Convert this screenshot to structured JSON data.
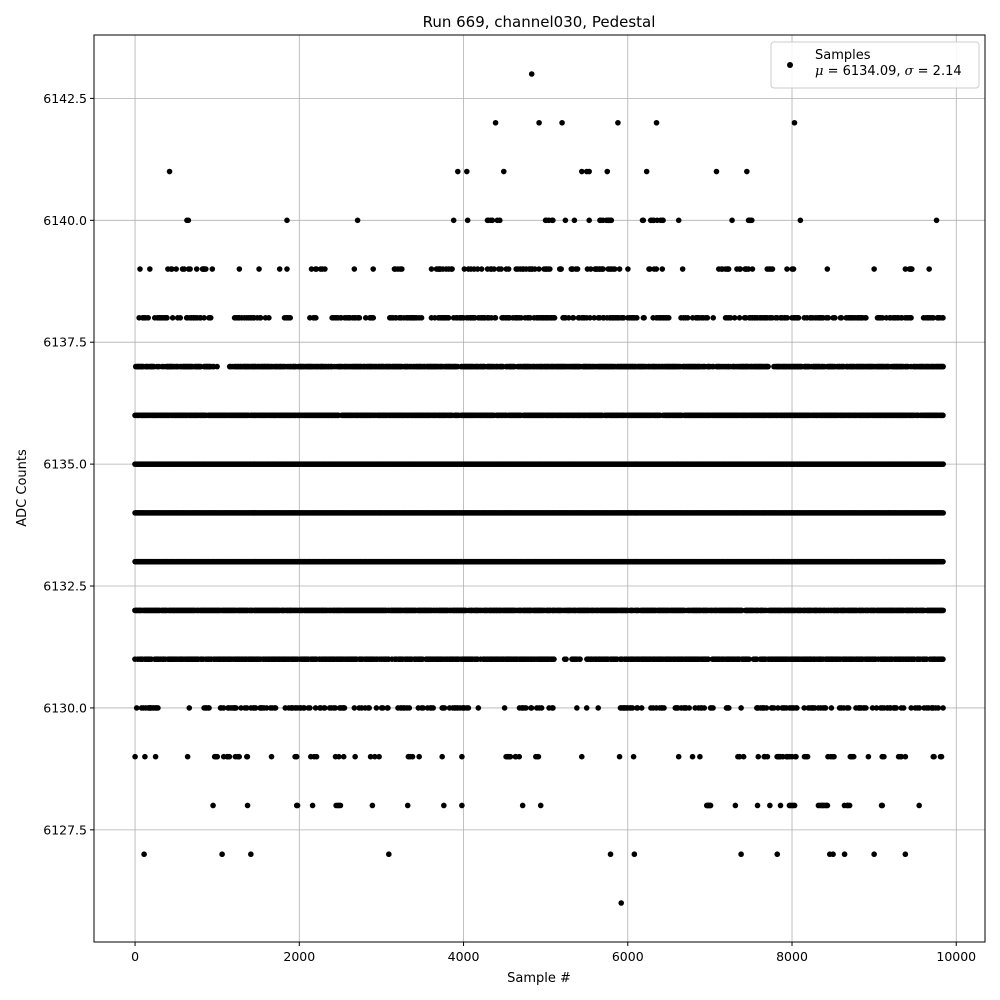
{
  "chart_data": {
    "type": "scatter",
    "title": "Run 669, channel030, Pedestal",
    "xlabel": "Sample #",
    "ylabel": "ADC Counts",
    "xlim": [
      -500,
      10350
    ],
    "ylim": [
      6125.2,
      6143.8
    ],
    "xticks": [
      0,
      2000,
      4000,
      6000,
      8000,
      10000
    ],
    "xtick_labels": [
      "0",
      "2000",
      "4000",
      "6000",
      "8000",
      "10000"
    ],
    "yticks": [
      6127.5,
      6130.0,
      6132.5,
      6135.0,
      6137.5,
      6140.0,
      6142.5
    ],
    "ytick_labels": [
      "6127.5",
      "6130.0",
      "6132.5",
      "6135.0",
      "6137.5",
      "6140.0",
      "6142.5"
    ],
    "grid": true,
    "legend_position": "top-right",
    "marker_color": "#000000",
    "series": [
      {
        "name": "Samples",
        "stats": {
          "mu_label": "μ",
          "mu": "6134.09",
          "sigma_label": "σ",
          "sigma": "2.14"
        },
        "outliers": [
          {
            "x": 4830,
            "y": 6143
          },
          {
            "x": 4390,
            "y": 6142
          },
          {
            "x": 4920,
            "y": 6142
          },
          {
            "x": 5200,
            "y": 6142
          },
          {
            "x": 5880,
            "y": 6142
          },
          {
            "x": 6350,
            "y": 6142
          },
          {
            "x": 8030,
            "y": 6142
          },
          {
            "x": 420,
            "y": 6141
          },
          {
            "x": 3930,
            "y": 6141
          },
          {
            "x": 4040,
            "y": 6141
          },
          {
            "x": 4490,
            "y": 6141
          },
          {
            "x": 5440,
            "y": 6141
          },
          {
            "x": 5500,
            "y": 6141
          },
          {
            "x": 5530,
            "y": 6141
          },
          {
            "x": 5750,
            "y": 6141
          },
          {
            "x": 6230,
            "y": 6141
          },
          {
            "x": 7080,
            "y": 6141
          },
          {
            "x": 7450,
            "y": 6141
          },
          {
            "x": 110,
            "y": 6127
          },
          {
            "x": 1060,
            "y": 6127
          },
          {
            "x": 1410,
            "y": 6127
          },
          {
            "x": 3090,
            "y": 6127
          },
          {
            "x": 5790,
            "y": 6127
          },
          {
            "x": 6080,
            "y": 6127
          },
          {
            "x": 7380,
            "y": 6127
          },
          {
            "x": 7820,
            "y": 6127
          },
          {
            "x": 8460,
            "y": 6127
          },
          {
            "x": 8500,
            "y": 6127
          },
          {
            "x": 8640,
            "y": 6127
          },
          {
            "x": 9000,
            "y": 6127
          },
          {
            "x": 9380,
            "y": 6127
          },
          {
            "x": 5920,
            "y": 6126
          }
        ],
        "level_ranges": [
          {
            "y": 6140,
            "ranges": [
              [
                520,
                720
              ],
              [
                1850,
                1850
              ],
              [
                2710,
                2710
              ],
              [
                3880,
                3880
              ],
              [
                4050,
                4050
              ],
              [
                4250,
                4460
              ],
              [
                4970,
                5090
              ],
              [
                5240,
                5240
              ],
              [
                5350,
                5350
              ],
              [
                5530,
                5530
              ],
              [
                5650,
                5820
              ],
              [
                6180,
                6430
              ],
              [
                6620,
                6700
              ],
              [
                7270,
                7270
              ],
              [
                7470,
                7560
              ],
              [
                8060,
                8100
              ],
              [
                9760,
                9760
              ]
            ]
          },
          {
            "y": 6139,
            "ranges": [
              [
                60,
                60
              ],
              [
                180,
                180
              ],
              [
                400,
                960
              ],
              [
                1270,
                1270
              ],
              [
                1510,
                1510
              ],
              [
                1720,
                1760
              ],
              [
                1850,
                1850
              ],
              [
                2100,
                2320
              ],
              [
                2670,
                2670
              ],
              [
                2900,
                2900
              ],
              [
                3130,
                3250
              ],
              [
                3600,
                3900
              ],
              [
                3950,
                4980
              ],
              [
                5000,
                5860
              ],
              [
                5890,
                6030
              ],
              [
                6210,
                6440
              ],
              [
                6660,
                6730
              ],
              [
                7100,
                7230
              ],
              [
                7330,
                7390
              ],
              [
                7420,
                7540
              ],
              [
                7700,
                7780
              ],
              [
                7940,
                8040
              ],
              [
                8430,
                8430
              ],
              [
                9000,
                9000
              ],
              [
                9370,
                9460
              ],
              [
                9670,
                9670
              ]
            ]
          },
          {
            "y": 6138,
            "ranges": [
              [
                0,
                960
              ],
              [
                1200,
                1650
              ],
              [
                1800,
                1900
              ],
              [
                2100,
                2200
              ],
              [
                2400,
                2900
              ],
              [
                3100,
                3500
              ],
              [
                3600,
                6200
              ],
              [
                6300,
                6500
              ],
              [
                6650,
                7100
              ],
              [
                7150,
                7500
              ],
              [
                7500,
                8100
              ],
              [
                8150,
                8450
              ],
              [
                8500,
                8900
              ],
              [
                9000,
                9450
              ],
              [
                9600,
                9840
              ]
            ]
          },
          {
            "y": 6137,
            "ranges": [
              [
                0,
                1000
              ],
              [
                1150,
                9840
              ]
            ]
          },
          {
            "y": 6136,
            "ranges": [
              [
                0,
                9840
              ]
            ]
          },
          {
            "y": 6135,
            "ranges": [
              [
                0,
                9840
              ]
            ]
          },
          {
            "y": 6134,
            "ranges": [
              [
                0,
                9840
              ]
            ]
          },
          {
            "y": 6133,
            "ranges": [
              [
                0,
                9840
              ]
            ]
          },
          {
            "y": 6132,
            "ranges": [
              [
                0,
                9840
              ]
            ]
          },
          {
            "y": 6131,
            "ranges": [
              [
                0,
                5100
              ],
              [
                5230,
                5250
              ],
              [
                5320,
                5430
              ],
              [
                5500,
                9840
              ]
            ]
          },
          {
            "y": 6130,
            "ranges": [
              [
                0,
                280
              ],
              [
                660,
                660
              ],
              [
                800,
                900
              ],
              [
                1030,
                1750
              ],
              [
                1830,
                2150
              ],
              [
                2200,
                2850
              ],
              [
                2920,
                3350
              ],
              [
                3380,
                3650
              ],
              [
                3730,
                4100
              ],
              [
                4180,
                4180
              ],
              [
                4500,
                4500
              ],
              [
                4650,
                4950
              ],
              [
                5000,
                5100
              ],
              [
                5380,
                5380
              ],
              [
                5500,
                5500
              ],
              [
                5640,
                5640
              ],
              [
                5880,
                6190
              ],
              [
                6280,
                6440
              ],
              [
                6580,
                6930
              ],
              [
                7000,
                7120
              ],
              [
                7200,
                7250
              ],
              [
                7380,
                7380
              ],
              [
                7560,
                8080
              ],
              [
                8150,
                8500
              ],
              [
                8580,
                9400
              ],
              [
                9450,
                9840
              ]
            ]
          },
          {
            "y": 6129,
            "ranges": [
              [
                0,
                0
              ],
              [
                120,
                120
              ],
              [
                250,
                250
              ],
              [
                370,
                450
              ],
              [
                640,
                640
              ],
              [
                930,
                1280
              ],
              [
                1360,
                1440
              ],
              [
                1600,
                1660
              ],
              [
                1950,
                2000
              ],
              [
                2130,
                2220
              ],
              [
                2440,
                2540
              ],
              [
                2680,
                2680
              ],
              [
                2850,
                2970
              ],
              [
                3140,
                3160
              ],
              [
                3330,
                3480
              ],
              [
                3740,
                3740
              ],
              [
                3980,
                3980
              ],
              [
                4520,
                4750
              ],
              [
                4880,
                4930
              ],
              [
                5440,
                5440
              ],
              [
                5900,
                5900
              ],
              [
                6050,
                6130
              ],
              [
                6620,
                6620
              ],
              [
                6790,
                6880
              ],
              [
                7220,
                7230
              ],
              [
                7340,
                7420
              ],
              [
                7580,
                7700
              ],
              [
                7800,
                8050
              ],
              [
                8150,
                8320
              ],
              [
                8430,
                8760
              ],
              [
                8930,
                8930
              ],
              [
                9080,
                9120
              ],
              [
                9280,
                9380
              ],
              [
                9720,
                9820
              ]
            ]
          },
          {
            "y": 6128,
            "ranges": [
              [
                950,
                950
              ],
              [
                1370,
                1370
              ],
              [
                1950,
                1980
              ],
              [
                2150,
                2200
              ],
              [
                2410,
                2520
              ],
              [
                2890,
                2890
              ],
              [
                3320,
                3320
              ],
              [
                3760,
                3760
              ],
              [
                3980,
                3980
              ],
              [
                4720,
                4720
              ],
              [
                4940,
                4940
              ],
              [
                6950,
                7030
              ],
              [
                7310,
                7310
              ],
              [
                7580,
                7580
              ],
              [
                7730,
                7730
              ],
              [
                7860,
                7860
              ],
              [
                7960,
                8090
              ],
              [
                8310,
                8430
              ],
              [
                8620,
                8700
              ],
              [
                9020,
                9110
              ],
              [
                9550,
                9560
              ]
            ]
          }
        ],
        "level_density": {
          "6136": 0.9,
          "6135": 1.0,
          "6134": 1.0,
          "6133": 1.0,
          "6132": 0.9,
          "6137": 0.8,
          "6131": 0.75,
          "6138": 0.45,
          "6130": 0.4,
          "6139": 0.3,
          "6140": 0.35,
          "6129": 0.3,
          "6128": 0.3
        }
      }
    ]
  }
}
